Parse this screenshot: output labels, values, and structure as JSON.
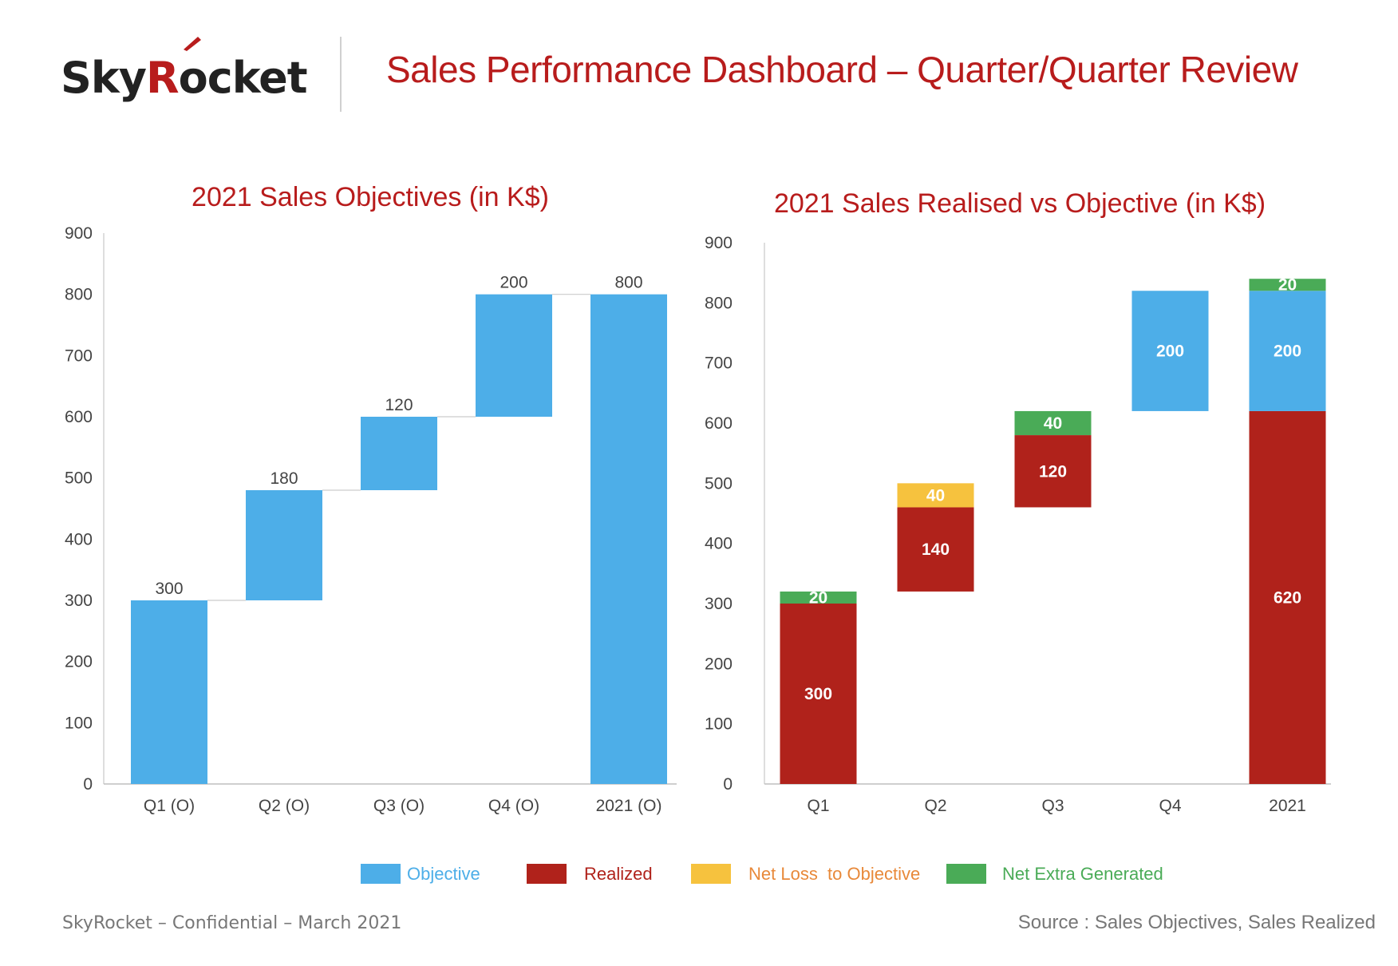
{
  "header": {
    "logo": {
      "prefix": "Sky",
      "accent": "R",
      "suffix": "ocket"
    },
    "title": "Sales Performance Dashboard – Quarter/Quarter Review"
  },
  "colors": {
    "objective": "#4daee8",
    "realized": "#b0221b",
    "net_loss": "#f6c23e",
    "net_extra": "#4aab57",
    "title_red": "#b81c1c",
    "axis_text": "#444444"
  },
  "chart_data": [
    {
      "type": "bar",
      "subtype": "waterfall",
      "title": "2021 Sales Objectives (in K$)",
      "categories": [
        "Q1 (O)",
        "Q2 (O)",
        "Q3 (O)",
        "Q4 (O)",
        "2021 (O)"
      ],
      "ylim": [
        0,
        900
      ],
      "yticks": [
        0,
        100,
        200,
        300,
        400,
        500,
        600,
        700,
        800,
        900
      ],
      "xlabel": "",
      "ylabel": "",
      "bars": [
        {
          "category": "Q1 (O)",
          "base": 0,
          "top": 300,
          "value": 300,
          "series": "Objective"
        },
        {
          "category": "Q2 (O)",
          "base": 300,
          "top": 480,
          "value": 180,
          "series": "Objective"
        },
        {
          "category": "Q3 (O)",
          "base": 480,
          "top": 600,
          "value": 120,
          "series": "Objective"
        },
        {
          "category": "Q4 (O)",
          "base": 600,
          "top": 800,
          "value": 200,
          "series": "Objective"
        },
        {
          "category": "2021 (O)",
          "base": 0,
          "top": 800,
          "value": 800,
          "series": "Objective"
        }
      ],
      "connectors": true,
      "grid": false
    },
    {
      "type": "bar",
      "subtype": "stacked-waterfall",
      "title": "2021 Sales Realised vs Objective (in K$)",
      "categories": [
        "Q1",
        "Q2",
        "Q3",
        "Q4",
        "2021"
      ],
      "ylim": [
        0,
        900
      ],
      "yticks": [
        0,
        100,
        200,
        300,
        400,
        500,
        600,
        700,
        800,
        900
      ],
      "xlabel": "",
      "ylabel": "",
      "bars": [
        {
          "category": "Q1",
          "base": 0,
          "top": 300,
          "value": 300,
          "series": "Realized"
        },
        {
          "category": "Q1",
          "base": 300,
          "top": 320,
          "value": 20,
          "series": "Net Extra Generated"
        },
        {
          "category": "Q2",
          "base": 320,
          "top": 460,
          "value": 140,
          "series": "Realized"
        },
        {
          "category": "Q2",
          "base": 460,
          "top": 500,
          "value": 40,
          "series": "Net Loss to Objective"
        },
        {
          "category": "Q3",
          "base": 460,
          "top": 580,
          "value": 120,
          "series": "Realized"
        },
        {
          "category": "Q3",
          "base": 580,
          "top": 620,
          "value": 40,
          "series": "Net Extra Generated"
        },
        {
          "category": "Q4",
          "base": 620,
          "top": 820,
          "value": 200,
          "series": "Objective"
        },
        {
          "category": "2021",
          "base": 0,
          "top": 620,
          "value": 620,
          "series": "Realized"
        },
        {
          "category": "2021",
          "base": 620,
          "top": 820,
          "value": 200,
          "series": "Objective"
        },
        {
          "category": "2021",
          "base": 820,
          "top": 840,
          "value": 20,
          "series": "Net Extra Generated"
        }
      ],
      "grid": false
    }
  ],
  "legend": [
    {
      "label": "Objective",
      "series": "Objective"
    },
    {
      "label": "Realized",
      "series": "Realized"
    },
    {
      "label": "Net Loss  to Objective",
      "series": "Net Loss to Objective"
    },
    {
      "label": "Net Extra Generated",
      "series": "Net Extra Generated"
    }
  ],
  "footer": {
    "left": "SkyRocket – Confidential – March 2021",
    "right": "Source : Sales Objectives, Sales Realized"
  }
}
